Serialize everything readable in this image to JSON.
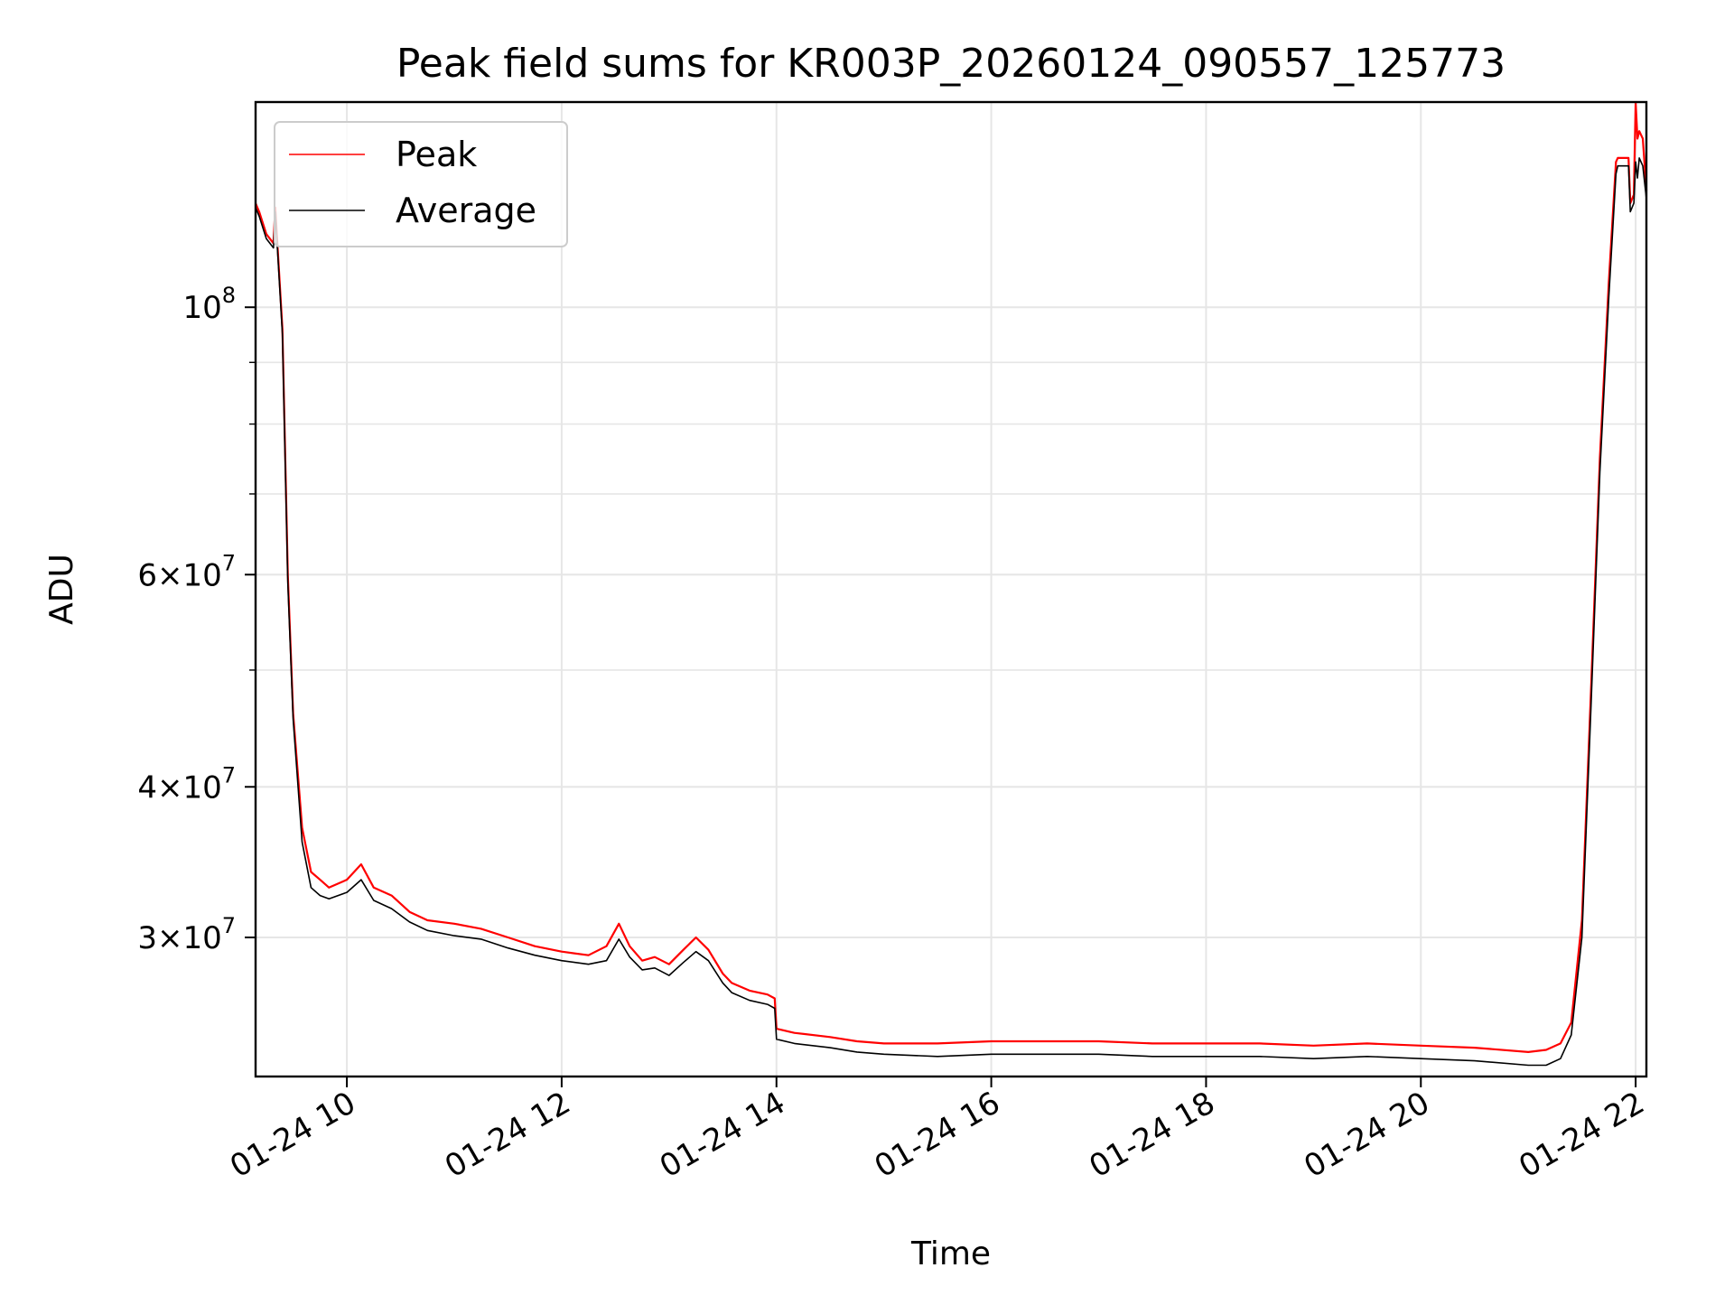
{
  "chart_data": {
    "type": "line",
    "title": "Peak field sums for KR003P_20260124_090557_125773",
    "xlabel": "Time",
    "ylabel": "ADU",
    "yscale": "log",
    "grid": true,
    "legend_position": "top-left",
    "x_tick_labels": [
      "01-24 10",
      "01-24 12",
      "01-24 14",
      "01-24 16",
      "01-24 18",
      "01-24 20",
      "01-24 22"
    ],
    "y_ticks": [
      {
        "value": 100000000,
        "mantissa": "",
        "base": "10",
        "exp": "8"
      },
      {
        "value": 60000000,
        "mantissa": "6",
        "base": "10",
        "exp": "7"
      },
      {
        "value": 40000000,
        "mantissa": "4",
        "base": "10",
        "exp": "7"
      },
      {
        "value": 30000000,
        "mantissa": "3",
        "base": "10",
        "exp": "7"
      }
    ],
    "xlim": [
      "2026-01-24 09:09",
      "2026-01-24 22:06"
    ],
    "ylim": [
      23000000,
      148000000
    ],
    "series": [
      {
        "name": "Peak",
        "color": "#ff0000",
        "x": [
          "2026-01-24 09:09",
          "2026-01-24 09:11",
          "2026-01-24 09:15",
          "2026-01-24 09:19",
          "2026-01-24 09:20",
          "2026-01-24 09:24",
          "2026-01-24 09:27",
          "2026-01-24 09:30",
          "2026-01-24 09:35",
          "2026-01-24 09:40",
          "2026-01-24 09:45",
          "2026-01-24 09:50",
          "2026-01-24 10:00",
          "2026-01-24 10:08",
          "2026-01-24 10:15",
          "2026-01-24 10:25",
          "2026-01-24 10:35",
          "2026-01-24 10:45",
          "2026-01-24 11:00",
          "2026-01-24 11:15",
          "2026-01-24 11:30",
          "2026-01-24 11:45",
          "2026-01-24 12:00",
          "2026-01-24 12:15",
          "2026-01-24 12:25",
          "2026-01-24 12:32",
          "2026-01-24 12:38",
          "2026-01-24 12:45",
          "2026-01-24 12:52",
          "2026-01-24 13:00",
          "2026-01-24 13:08",
          "2026-01-24 13:15",
          "2026-01-24 13:22",
          "2026-01-24 13:30",
          "2026-01-24 13:35",
          "2026-01-24 13:45",
          "2026-01-24 13:55",
          "2026-01-24 13:59",
          "2026-01-24 14:00",
          "2026-01-24 14:10",
          "2026-01-24 14:30",
          "2026-01-24 14:45",
          "2026-01-24 15:00",
          "2026-01-24 15:30",
          "2026-01-24 16:00",
          "2026-01-24 16:30",
          "2026-01-24 17:00",
          "2026-01-24 17:30",
          "2026-01-24 18:00",
          "2026-01-24 18:30",
          "2026-01-24 19:00",
          "2026-01-24 19:30",
          "2026-01-24 20:00",
          "2026-01-24 20:30",
          "2026-01-24 21:00",
          "2026-01-24 21:10",
          "2026-01-24 21:18",
          "2026-01-24 21:24",
          "2026-01-24 21:30",
          "2026-01-24 21:35",
          "2026-01-24 21:40",
          "2026-01-24 21:45",
          "2026-01-24 21:49",
          "2026-01-24 21:50",
          "2026-01-24 21:53",
          "2026-01-24 21:56",
          "2026-01-24 21:57",
          "2026-01-24 21:59",
          "2026-01-24 22:00",
          "2026-01-24 22:01",
          "2026-01-24 22:02",
          "2026-01-24 22:04",
          "2026-01-24 22:06"
        ],
        "y": [
          122000000,
          120000000,
          115000000,
          113000000,
          121000000,
          96000000,
          60000000,
          46000000,
          37000000,
          34000000,
          33500000,
          33000000,
          33500000,
          34500000,
          33000000,
          32500000,
          31500000,
          31000000,
          30800000,
          30500000,
          30000000,
          29500000,
          29200000,
          29000000,
          29500000,
          30800000,
          29500000,
          28700000,
          28900000,
          28500000,
          29300000,
          30000000,
          29300000,
          28000000,
          27500000,
          27100000,
          26900000,
          26700000,
          25200000,
          25000000,
          24800000,
          24600000,
          24500000,
          24500000,
          24600000,
          24600000,
          24600000,
          24500000,
          24500000,
          24500000,
          24400000,
          24500000,
          24400000,
          24300000,
          24100000,
          24200000,
          24500000,
          25500000,
          31000000,
          48000000,
          75000000,
          105000000,
          132000000,
          133000000,
          133000000,
          133000000,
          122000000,
          124000000,
          150000000,
          138000000,
          140000000,
          138000000,
          125000000
        ]
      },
      {
        "name": "Average",
        "color": "#000000",
        "x": [
          "2026-01-24 09:09",
          "2026-01-24 09:11",
          "2026-01-24 09:15",
          "2026-01-24 09:19",
          "2026-01-24 09:20",
          "2026-01-24 09:24",
          "2026-01-24 09:27",
          "2026-01-24 09:30",
          "2026-01-24 09:35",
          "2026-01-24 09:40",
          "2026-01-24 09:45",
          "2026-01-24 09:50",
          "2026-01-24 10:00",
          "2026-01-24 10:08",
          "2026-01-24 10:15",
          "2026-01-24 10:25",
          "2026-01-24 10:35",
          "2026-01-24 10:45",
          "2026-01-24 11:00",
          "2026-01-24 11:15",
          "2026-01-24 11:30",
          "2026-01-24 11:45",
          "2026-01-24 12:00",
          "2026-01-24 12:15",
          "2026-01-24 12:25",
          "2026-01-24 12:32",
          "2026-01-24 12:38",
          "2026-01-24 12:45",
          "2026-01-24 12:52",
          "2026-01-24 13:00",
          "2026-01-24 13:08",
          "2026-01-24 13:15",
          "2026-01-24 13:22",
          "2026-01-24 13:30",
          "2026-01-24 13:35",
          "2026-01-24 13:45",
          "2026-01-24 13:55",
          "2026-01-24 13:59",
          "2026-01-24 14:00",
          "2026-01-24 14:10",
          "2026-01-24 14:30",
          "2026-01-24 14:45",
          "2026-01-24 15:00",
          "2026-01-24 15:30",
          "2026-01-24 16:00",
          "2026-01-24 16:30",
          "2026-01-24 17:00",
          "2026-01-24 17:30",
          "2026-01-24 18:00",
          "2026-01-24 18:30",
          "2026-01-24 19:00",
          "2026-01-24 19:30",
          "2026-01-24 20:00",
          "2026-01-24 20:30",
          "2026-01-24 21:00",
          "2026-01-24 21:10",
          "2026-01-24 21:18",
          "2026-01-24 21:24",
          "2026-01-24 21:30",
          "2026-01-24 21:35",
          "2026-01-24 21:40",
          "2026-01-24 21:45",
          "2026-01-24 21:49",
          "2026-01-24 21:50",
          "2026-01-24 21:53",
          "2026-01-24 21:56",
          "2026-01-24 21:57",
          "2026-01-24 21:59",
          "2026-01-24 22:00",
          "2026-01-24 22:01",
          "2026-01-24 22:02",
          "2026-01-24 22:04",
          "2026-01-24 22:06"
        ],
        "y": [
          121000000,
          119000000,
          114000000,
          112000000,
          120000000,
          95000000,
          59000000,
          45500000,
          36000000,
          33000000,
          32500000,
          32300000,
          32700000,
          33500000,
          32200000,
          31700000,
          30900000,
          30400000,
          30100000,
          29900000,
          29400000,
          29000000,
          28700000,
          28500000,
          28700000,
          29900000,
          28900000,
          28200000,
          28300000,
          27900000,
          28600000,
          29200000,
          28700000,
          27500000,
          27000000,
          26600000,
          26400000,
          26200000,
          24700000,
          24500000,
          24300000,
          24100000,
          24000000,
          23900000,
          24000000,
          24000000,
          24000000,
          23900000,
          23900000,
          23900000,
          23800000,
          23900000,
          23800000,
          23700000,
          23500000,
          23500000,
          23800000,
          24900000,
          30000000,
          46500000,
          73000000,
          102000000,
          129000000,
          131000000,
          131000000,
          131000000,
          120000000,
          122000000,
          132000000,
          128000000,
          133000000,
          131000000,
          123000000
        ]
      }
    ]
  }
}
